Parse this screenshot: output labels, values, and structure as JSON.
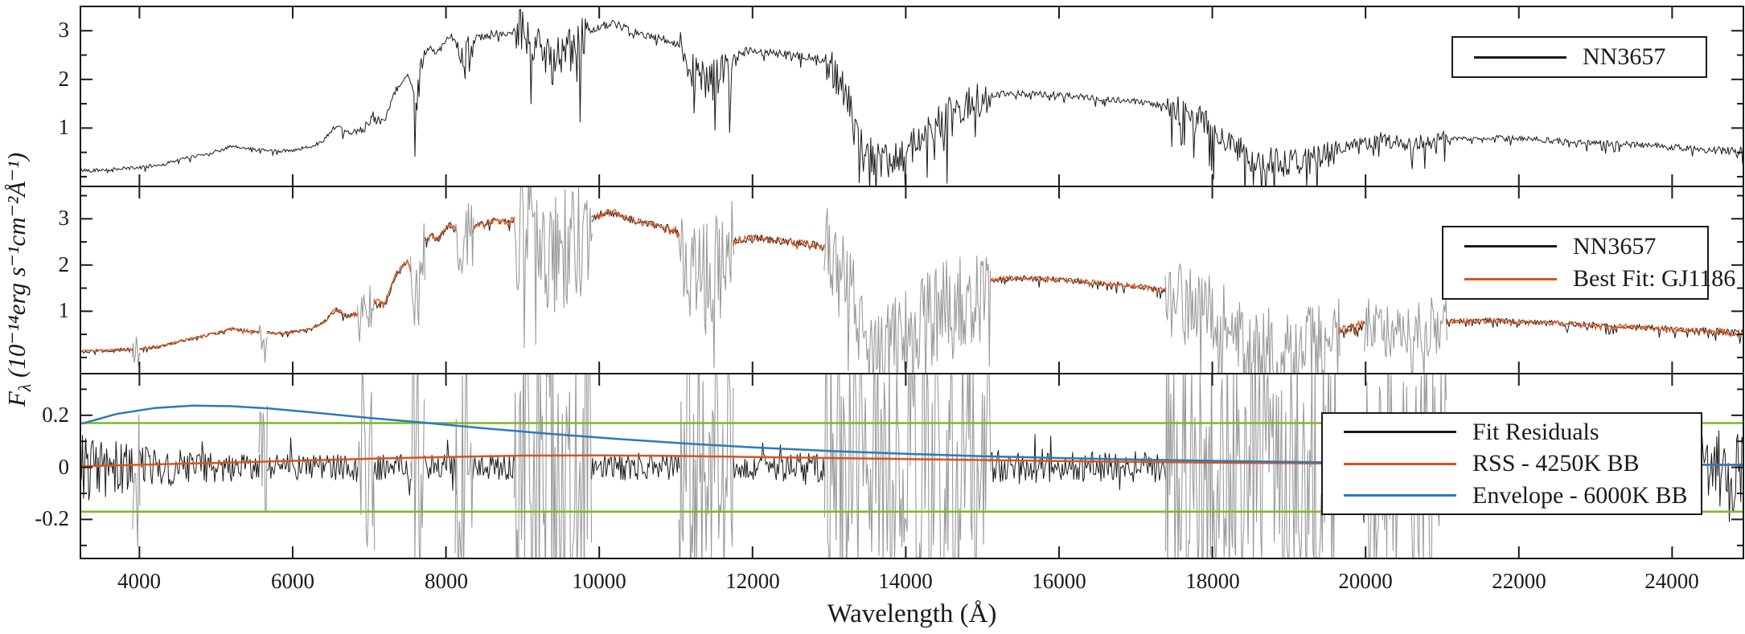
{
  "figure": {
    "xlabel": "Wavelength (Å)",
    "ylabel_f": "F",
    "ylabel_sub": "λ",
    "ylabel_units": " (10⁻¹⁴erg s⁻¹cm⁻²Å⁻¹)"
  },
  "chart_data": {
    "type": "line",
    "title": "",
    "xlabel": "Wavelength (Å)",
    "ylabel": "Fλ (10⁻¹⁴ erg s⁻¹ cm⁻² Å⁻¹)",
    "grid": false,
    "xlim": [
      3230,
      24930
    ],
    "x_major_ticks": [
      4000,
      6000,
      8000,
      10000,
      12000,
      14000,
      16000,
      18000,
      20000,
      22000,
      24000
    ],
    "colors": {
      "black": "#1a1a1a",
      "orange": "#d9541c",
      "blue": "#2b7bba",
      "green": "#7cb827",
      "gray": "#9a9a9a"
    },
    "masked_telluric_regions": [
      [
        3920,
        4000
      ],
      [
        5570,
        5660
      ],
      [
        6860,
        7060
      ],
      [
        7550,
        7720
      ],
      [
        8130,
        8350
      ],
      [
        8900,
        9900
      ],
      [
        11050,
        11750
      ],
      [
        12950,
        15100
      ],
      [
        17400,
        19650
      ],
      [
        20000,
        21050
      ]
    ],
    "noise_amp_regions": [
      [
        3250,
        6500,
        0.035
      ],
      [
        6500,
        6860,
        0.05
      ],
      [
        6860,
        7060,
        0.12
      ],
      [
        7060,
        7550,
        0.06
      ],
      [
        7550,
        7720,
        0.4
      ],
      [
        7720,
        8130,
        0.07
      ],
      [
        8130,
        8350,
        0.28
      ],
      [
        8350,
        8900,
        0.07
      ],
      [
        8900,
        9900,
        0.5
      ],
      [
        9900,
        11050,
        0.08
      ],
      [
        11050,
        11750,
        0.45
      ],
      [
        11750,
        12950,
        0.08
      ],
      [
        12950,
        15100,
        0.38
      ],
      [
        15100,
        17400,
        0.06
      ],
      [
        17400,
        19650,
        0.3
      ],
      [
        19650,
        20000,
        0.12
      ],
      [
        20000,
        21050,
        0.18
      ],
      [
        21050,
        24400,
        0.06
      ],
      [
        24400,
        24930,
        0.09
      ]
    ],
    "spectrum_envelope": [
      [
        3250,
        0.13
      ],
      [
        3600,
        0.15
      ],
      [
        4000,
        0.19
      ],
      [
        4300,
        0.25
      ],
      [
        4600,
        0.38
      ],
      [
        4800,
        0.45
      ],
      [
        5000,
        0.52
      ],
      [
        5200,
        0.62
      ],
      [
        5400,
        0.58
      ],
      [
        5600,
        0.55
      ],
      [
        5800,
        0.52
      ],
      [
        6000,
        0.55
      ],
      [
        6200,
        0.6
      ],
      [
        6400,
        0.75
      ],
      [
        6560,
        1.05
      ],
      [
        6700,
        0.9
      ],
      [
        6900,
        0.95
      ],
      [
        7050,
        1.25
      ],
      [
        7200,
        1.15
      ],
      [
        7350,
        1.8
      ],
      [
        7500,
        2.1
      ],
      [
        7600,
        1.55
      ],
      [
        7700,
        2.5
      ],
      [
        7800,
        2.65
      ],
      [
        7900,
        2.55
      ],
      [
        8000,
        2.8
      ],
      [
        8100,
        2.9
      ],
      [
        8200,
        2.45
      ],
      [
        8400,
        2.85
      ],
      [
        8600,
        2.95
      ],
      [
        8800,
        2.95
      ],
      [
        9000,
        3.05
      ],
      [
        9200,
        2.8
      ],
      [
        9350,
        2.3
      ],
      [
        9500,
        2.6
      ],
      [
        9700,
        2.6
      ],
      [
        9850,
        2.95
      ],
      [
        10000,
        3.1
      ],
      [
        10200,
        3.15
      ],
      [
        10400,
        3.0
      ],
      [
        10600,
        2.9
      ],
      [
        10800,
        2.85
      ],
      [
        11000,
        2.75
      ],
      [
        11200,
        2.3
      ],
      [
        11400,
        1.9
      ],
      [
        11600,
        2.2
      ],
      [
        11800,
        2.55
      ],
      [
        12000,
        2.6
      ],
      [
        12200,
        2.55
      ],
      [
        12500,
        2.5
      ],
      [
        12800,
        2.45
      ],
      [
        13000,
        2.35
      ],
      [
        13200,
        1.8
      ],
      [
        13400,
        0.8
      ],
      [
        13600,
        0.35
      ],
      [
        13800,
        0.4
      ],
      [
        14000,
        0.55
      ],
      [
        14200,
        0.8
      ],
      [
        14400,
        1.1
      ],
      [
        14600,
        1.35
      ],
      [
        14800,
        1.5
      ],
      [
        15000,
        1.6
      ],
      [
        15200,
        1.7
      ],
      [
        15500,
        1.72
      ],
      [
        16000,
        1.68
      ],
      [
        16500,
        1.62
      ],
      [
        17000,
        1.55
      ],
      [
        17300,
        1.48
      ],
      [
        17600,
        1.35
      ],
      [
        17900,
        1.15
      ],
      [
        18200,
        0.75
      ],
      [
        18500,
        0.4
      ],
      [
        18800,
        0.3
      ],
      [
        19100,
        0.32
      ],
      [
        19400,
        0.45
      ],
      [
        19700,
        0.6
      ],
      [
        20000,
        0.72
      ],
      [
        20300,
        0.78
      ],
      [
        20500,
        0.6
      ],
      [
        20700,
        0.68
      ],
      [
        20900,
        0.78
      ],
      [
        21200,
        0.78
      ],
      [
        21600,
        0.8
      ],
      [
        22000,
        0.78
      ],
      [
        22500,
        0.74
      ],
      [
        23000,
        0.7
      ],
      [
        23500,
        0.66
      ],
      [
        24000,
        0.62
      ],
      [
        24500,
        0.56
      ],
      [
        24900,
        0.52
      ]
    ],
    "panels": [
      {
        "name": "observed",
        "ylim": [
          -0.2,
          3.5
        ],
        "yticks": [
          {
            "v": 1,
            "t": "1"
          },
          {
            "v": 2,
            "t": "2"
          },
          {
            "v": 3,
            "t": "3"
          }
        ],
        "y_minor_step": 0.5,
        "legend": [
          {
            "label": "NN3657",
            "color": "#1a1a1a"
          }
        ]
      },
      {
        "name": "best-fit",
        "ylim": [
          -0.35,
          3.7
        ],
        "yticks": [
          {
            "v": 1,
            "t": "1"
          },
          {
            "v": 2,
            "t": "2"
          },
          {
            "v": 3,
            "t": "3"
          }
        ],
        "y_minor_step": 0.5,
        "legend": [
          {
            "label": "NN3657",
            "color": "#1a1a1a"
          },
          {
            "label": "Best Fit: GJ1186",
            "color": "#d9541c"
          }
        ]
      },
      {
        "name": "residuals",
        "ylim": [
          -0.35,
          0.36
        ],
        "yticks": [
          {
            "v": -0.2,
            "t": "-0.2"
          },
          {
            "v": 0,
            "t": "0"
          },
          {
            "v": 0.2,
            "t": "0.2"
          }
        ],
        "y_minor_step": 0.1,
        "legend": [
          {
            "label": "Fit Residuals",
            "color": "#1a1a1a"
          },
          {
            "label": "RSS - 4250K BB",
            "color": "#d9541c"
          },
          {
            "label": "Envelope - 6000K BB",
            "color": "#2b7bba"
          }
        ],
        "threshold_lines": {
          "color": "#7cb827",
          "values": [
            0.17,
            -0.17
          ]
        },
        "residual_amp": [
          [
            3250,
            0.14
          ],
          [
            3700,
            0.11
          ],
          [
            4200,
            0.08
          ],
          [
            4800,
            0.06
          ],
          [
            5500,
            0.05
          ],
          [
            6500,
            0.05
          ],
          [
            7500,
            0.05
          ],
          [
            8500,
            0.05
          ],
          [
            9500,
            0.05
          ],
          [
            10500,
            0.05
          ],
          [
            11500,
            0.05
          ],
          [
            12500,
            0.055
          ],
          [
            13500,
            0.07
          ],
          [
            14500,
            0.08
          ],
          [
            15500,
            0.065
          ],
          [
            16500,
            0.06
          ],
          [
            17500,
            0.07
          ],
          [
            18500,
            0.1
          ],
          [
            19500,
            0.1
          ],
          [
            20500,
            0.09
          ],
          [
            21500,
            0.07
          ],
          [
            22500,
            0.07
          ],
          [
            23500,
            0.08
          ],
          [
            24300,
            0.12
          ],
          [
            24930,
            0.22
          ]
        ],
        "rss_curve": [
          [
            3250,
            0.004
          ],
          [
            4000,
            0.01
          ],
          [
            5000,
            0.017
          ],
          [
            6000,
            0.025
          ],
          [
            7000,
            0.033
          ],
          [
            8000,
            0.04
          ],
          [
            9000,
            0.045
          ],
          [
            10000,
            0.046
          ],
          [
            11000,
            0.044
          ],
          [
            12000,
            0.04
          ],
          [
            13000,
            0.036
          ],
          [
            14000,
            0.032
          ],
          [
            15000,
            0.028
          ],
          [
            16000,
            0.024
          ],
          [
            17000,
            0.021
          ],
          [
            18000,
            0.018
          ],
          [
            19000,
            0.016
          ],
          [
            20000,
            0.014
          ],
          [
            21000,
            0.013
          ],
          [
            22000,
            0.012
          ],
          [
            23000,
            0.011
          ],
          [
            24000,
            0.01
          ],
          [
            24930,
            0.01
          ]
        ],
        "envelope_curve": [
          [
            3250,
            0.168
          ],
          [
            3700,
            0.205
          ],
          [
            4200,
            0.228
          ],
          [
            4700,
            0.237
          ],
          [
            5200,
            0.235
          ],
          [
            5700,
            0.226
          ],
          [
            6300,
            0.21
          ],
          [
            7000,
            0.19
          ],
          [
            7700,
            0.172
          ],
          [
            8500,
            0.15
          ],
          [
            9300,
            0.13
          ],
          [
            10200,
            0.11
          ],
          [
            11100,
            0.092
          ],
          [
            12000,
            0.077
          ],
          [
            13000,
            0.063
          ],
          [
            14000,
            0.052
          ],
          [
            15000,
            0.043
          ],
          [
            16000,
            0.036
          ],
          [
            17000,
            0.03
          ],
          [
            18000,
            0.025
          ],
          [
            19000,
            0.021
          ],
          [
            20000,
            0.018
          ],
          [
            21000,
            0.015
          ],
          [
            22000,
            0.013
          ],
          [
            23000,
            0.012
          ],
          [
            24000,
            0.01
          ],
          [
            24930,
            0.009
          ]
        ]
      }
    ]
  }
}
